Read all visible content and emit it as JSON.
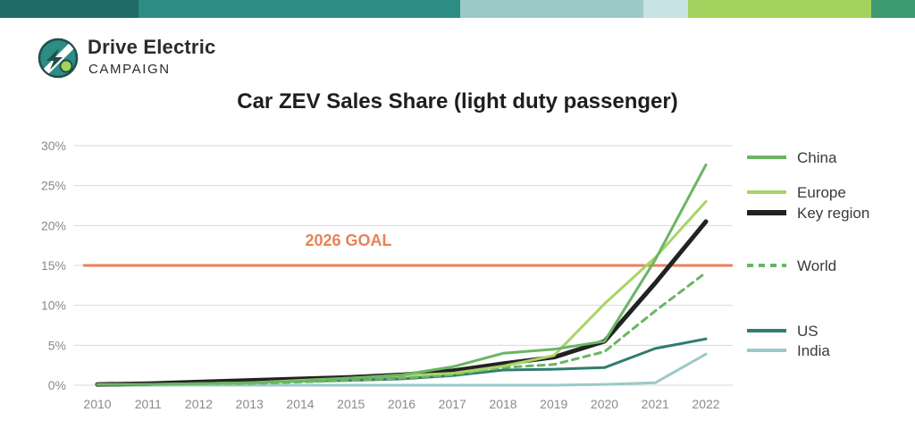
{
  "header": {
    "brand_title": "Drive Electric",
    "brand_subtitle": "CAMPAIGN",
    "top_bar_colors": [
      "#1f6b66",
      "#2d8c84",
      "#9cc9c8",
      "#c8e3e4",
      "#a4d25e",
      "#3c9a6e"
    ]
  },
  "chart_data": {
    "type": "line",
    "title": "Car ZEV Sales Share (light duty passenger)",
    "xlabel": "",
    "ylabel": "",
    "x": [
      "2010",
      "2011",
      "2012",
      "2013",
      "2014",
      "2015",
      "2016",
      "2017",
      "2018",
      "2019",
      "2020",
      "2021",
      "2022"
    ],
    "y_ticks": [
      "0%",
      "5%",
      "10%",
      "15%",
      "20%",
      "25%",
      "30%"
    ],
    "ylim": [
      0,
      30
    ],
    "grid": true,
    "legend_position": "right",
    "reference_line": {
      "label": "2026 GOAL",
      "value": 15,
      "color": "#e8825a"
    },
    "series": [
      {
        "name": "China",
        "color": "#6ab564",
        "dash": false,
        "width": 3,
        "values": [
          0.1,
          0.1,
          0.2,
          0.3,
          0.5,
          0.9,
          1.3,
          2.3,
          4.0,
          4.5,
          5.5,
          15.7,
          27.6
        ]
      },
      {
        "name": "Europe",
        "color": "#a8d467",
        "dash": false,
        "width": 3,
        "values": [
          0.1,
          0.1,
          0.2,
          0.3,
          0.6,
          0.9,
          1.2,
          1.5,
          2.4,
          3.7,
          10.2,
          16.0,
          23.0
        ]
      },
      {
        "name": "Key region",
        "color": "#222222",
        "dash": false,
        "width": 5,
        "values": [
          0.1,
          0.2,
          0.4,
          0.6,
          0.8,
          1.0,
          1.3,
          1.8,
          2.7,
          3.5,
          5.5,
          12.8,
          20.5
        ]
      },
      {
        "name": "World",
        "color": "#6ab564",
        "dash": true,
        "width": 3,
        "values": [
          0.0,
          0.1,
          0.2,
          0.2,
          0.4,
          0.6,
          0.9,
          1.3,
          2.2,
          2.6,
          4.2,
          9.3,
          14.1
        ]
      },
      {
        "name": "US",
        "color": "#2f7d70",
        "dash": false,
        "width": 3,
        "values": [
          0.0,
          0.1,
          0.3,
          0.4,
          0.5,
          0.6,
          0.8,
          1.2,
          1.9,
          2.0,
          2.2,
          4.6,
          5.8
        ]
      },
      {
        "name": "India",
        "color": "#9cc9c8",
        "dash": false,
        "width": 3,
        "values": [
          0.0,
          0.0,
          0.0,
          0.0,
          0.0,
          0.0,
          0.0,
          0.0,
          0.0,
          0.0,
          0.1,
          0.3,
          3.9
        ]
      }
    ]
  }
}
